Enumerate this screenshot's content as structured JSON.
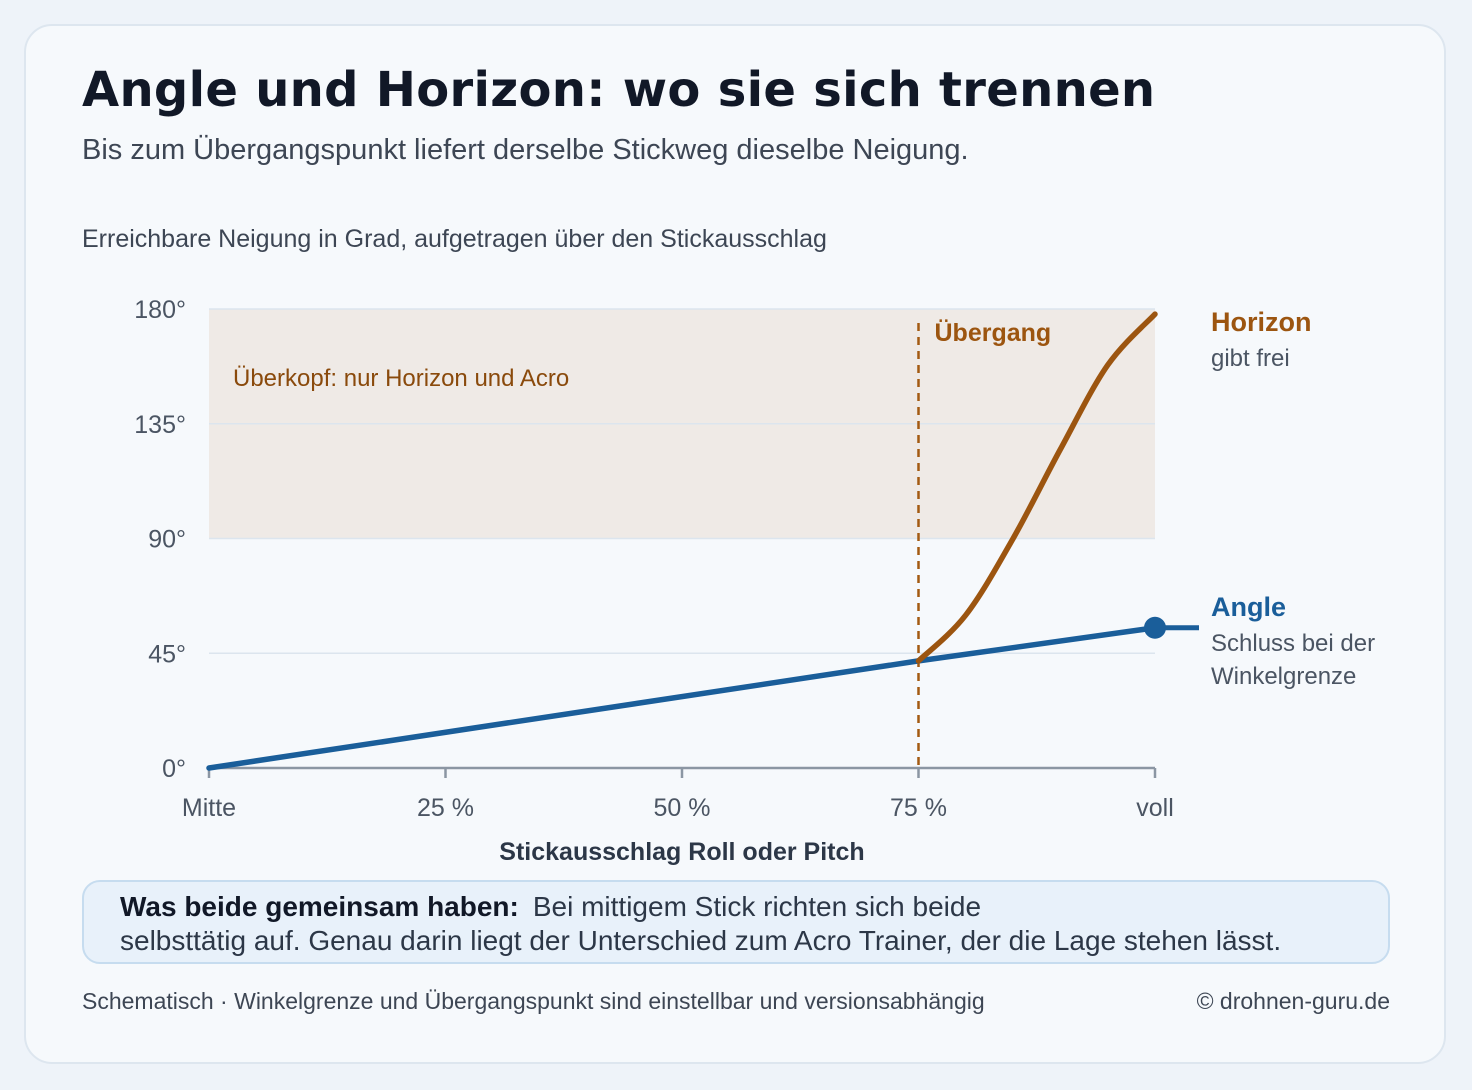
{
  "header": {
    "title": "Angle und Horizon: wo sie sich trennen",
    "subtitle": "Bis zum Übergangspunkt liefert derselbe Stickweg dieselbe Neigung."
  },
  "chart_caption": "Erreichbare Neigung in Grad, aufgetragen über den Stickausschlag",
  "chart_data": {
    "type": "line",
    "xlabel": "Stickausschlag Roll oder Pitch",
    "ylabel": "",
    "xlim": [
      0,
      100
    ],
    "ylim": [
      0,
      180
    ],
    "x_ticks": [
      {
        "value": 0,
        "label": "Mitte"
      },
      {
        "value": 25,
        "label": "25 %"
      },
      {
        "value": 50,
        "label": "50 %"
      },
      {
        "value": 75,
        "label": "75 %"
      },
      {
        "value": 100,
        "label": "voll"
      }
    ],
    "y_ticks": [
      {
        "value": 0,
        "label": "0°"
      },
      {
        "value": 45,
        "label": "45°"
      },
      {
        "value": 90,
        "label": "90°"
      },
      {
        "value": 135,
        "label": "135°"
      },
      {
        "value": 180,
        "label": "180°"
      }
    ],
    "grid": true,
    "shaded_region": {
      "y_from": 90,
      "y_to": 180,
      "label": "Überkopf: nur Horizon und Acro"
    },
    "transition": {
      "x": 75,
      "label": "Übergang"
    },
    "series": [
      {
        "name": "Angle",
        "note": [
          "Schluss bei der",
          "Winkelgrenze"
        ],
        "color": "#1a5e9a",
        "x": [
          0,
          75,
          100
        ],
        "y": [
          0,
          42,
          55
        ]
      },
      {
        "name": "Horizon",
        "note": [
          "gibt frei"
        ],
        "color": "#9c5510",
        "x": [
          75,
          80,
          85,
          90,
          95,
          100
        ],
        "y": [
          42,
          60,
          90,
          125,
          158,
          178
        ]
      }
    ]
  },
  "infobox": {
    "heading": "Was beide gemeinsam haben:",
    "text_line1": "Bei mittigem Stick richten sich beide",
    "text_line2": "selbsttätig auf. Genau darin liegt der Unterschied zum Acro Trainer, der die Lage stehen lässt."
  },
  "footer": {
    "note": "Schematisch · Winkelgrenze und Übergangspunkt sind einstellbar und versionsabhängig",
    "credit": "© drohnen-guru.de"
  }
}
